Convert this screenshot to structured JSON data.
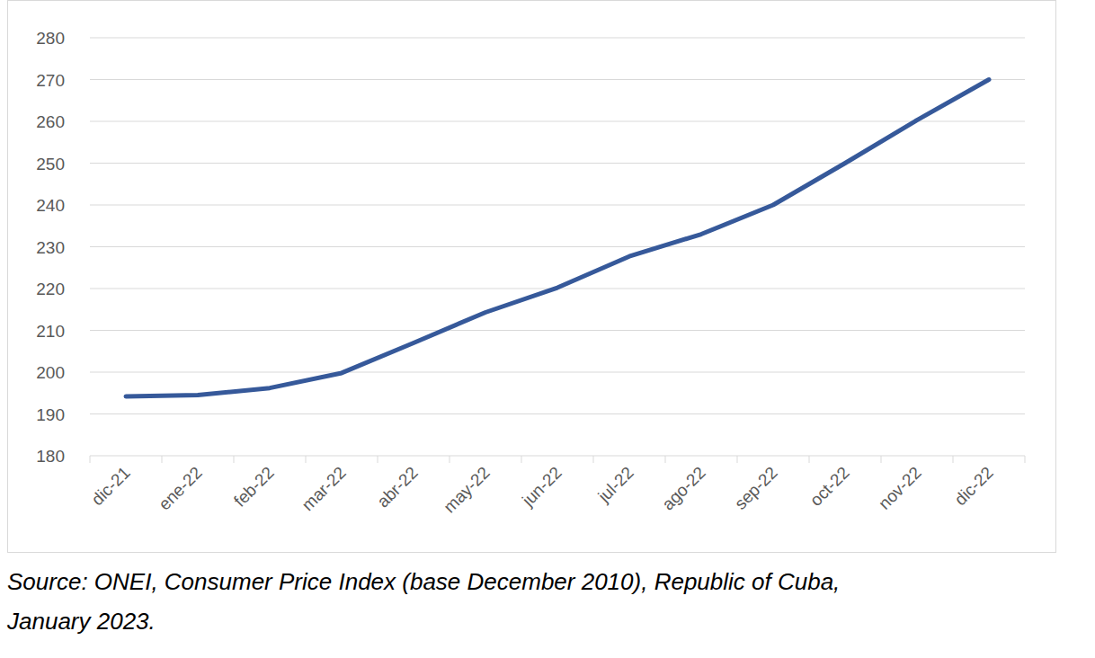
{
  "chart_data": {
    "type": "line",
    "categories": [
      "dic-21",
      "ene-22",
      "feb-22",
      "mar-22",
      "abr-22",
      "may-22",
      "jun-22",
      "jul-22",
      "ago-22",
      "sep-22",
      "oct-22",
      "nov-22",
      "dic-22"
    ],
    "values": [
      194.2,
      194.5,
      196.2,
      199.8,
      207,
      214.3,
      220.2,
      227.7,
      233,
      240,
      250,
      260.3,
      270
    ],
    "color": "#36599a",
    "ylim": [
      180,
      280
    ],
    "yticks": [
      180,
      190,
      200,
      210,
      220,
      230,
      240,
      250,
      260,
      270,
      280
    ],
    "grid": true,
    "source": [
      "Source: ONEI, Consumer Price Index (base December 2010), Republic of Cuba,",
      "January 2023."
    ]
  }
}
